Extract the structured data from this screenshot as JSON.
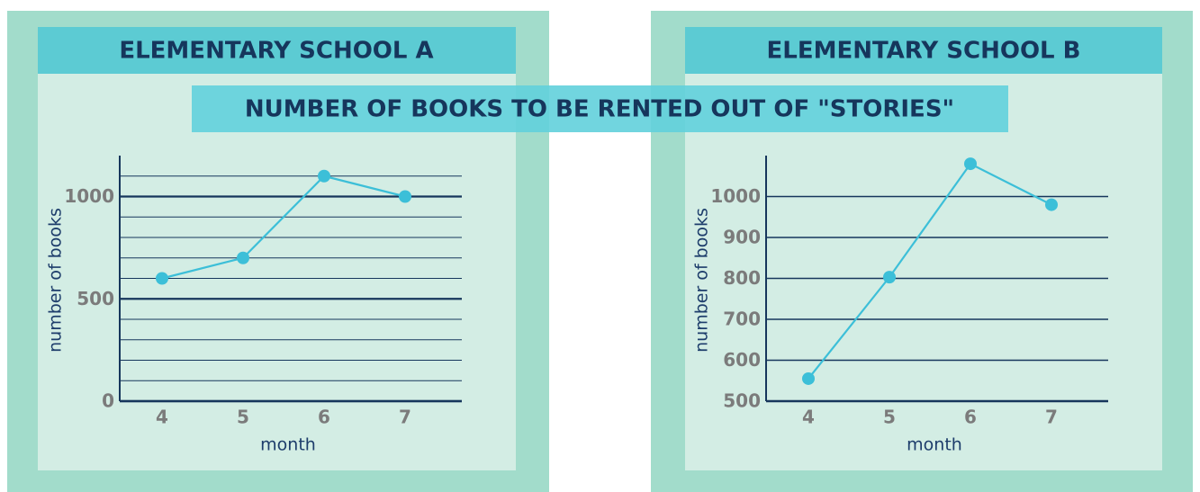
{
  "title": "NUMBER OF BOOKS TO BE RENTED OUT OF \"STORIES\"",
  "chart_data": [
    {
      "type": "line",
      "title": "ELEMENTARY SCHOOL A",
      "x_label": "month",
      "y_label": "number of books",
      "categories": [
        "4",
        "5",
        "6",
        "7"
      ],
      "series": [
        {
          "name": "Elementary School A",
          "color": "#3cbfd8",
          "values": [
            600,
            700,
            1100,
            1000
          ]
        }
      ],
      "ylim": [
        0,
        1200
      ],
      "yticks": [
        0,
        500,
        1000
      ],
      "minor_grid": [
        100,
        200,
        300,
        400,
        600,
        700,
        800,
        900,
        1100
      ],
      "grid": true
    },
    {
      "type": "line",
      "title": "ELEMENTARY SCHOOL B",
      "x_label": "month",
      "y_label": "number of books",
      "categories": [
        "4",
        "5",
        "6",
        "7"
      ],
      "series": [
        {
          "name": "Elementary School B",
          "color": "#3cbfd8",
          "values": [
            555,
            803,
            1080,
            980
          ]
        }
      ],
      "ylim": [
        500,
        1100
      ],
      "yticks": [
        500,
        600,
        700,
        800,
        900,
        1000
      ],
      "minor_grid": [],
      "grid": true
    }
  ]
}
